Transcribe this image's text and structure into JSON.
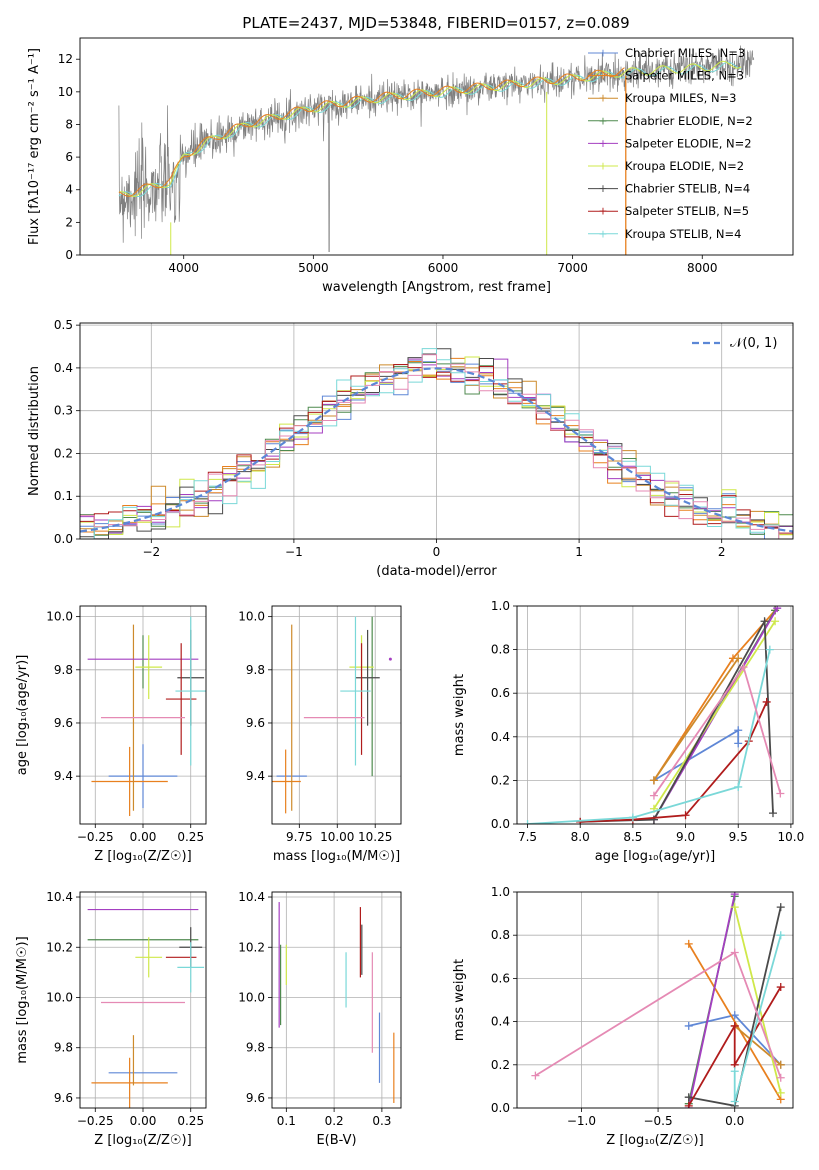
{
  "title": "PLATE=2437, MJD=53848, FIBERID=0157, z=0.089",
  "colors": {
    "chabrier_miles": "#5f87d6",
    "salpeter_miles": "#e8801f",
    "kroupa_miles": "#cd8a2b",
    "chabrier_elodie": "#4f8a4f",
    "salpeter_elodie": "#a43fc1",
    "kroupa_elodie": "#cfe84a",
    "chabrier_stelib": "#4a4a4a",
    "salpeter_stelib": "#b01c1c",
    "kroupa_stelib": "#7ad8d8",
    "data": "#808080",
    "pink": "#e58ab4",
    "normal": "#5b87d6"
  },
  "chart_data": [
    {
      "type": "line",
      "title": "PLATE=2437, MJD=53848, FIBERID=0157, z=0.089",
      "xlabel": "wavelength [Angstrom, rest frame]",
      "ylabel": "Flux [fλ10⁻¹⁷ erg cm⁻² s⁻¹ A⁻¹]",
      "xlim": [
        3200,
        8700
      ],
      "ylim": [
        0,
        13.3
      ],
      "xticks": [
        "4000",
        "5000",
        "6000",
        "7000",
        "8000"
      ],
      "yticks": [
        "0",
        "2",
        "4",
        "6",
        "8",
        "10",
        "12"
      ],
      "series": [
        {
          "name": "Chabrier MILES, N_SSP=3"
        },
        {
          "name": "Salpeter MILES, N_SSP=3"
        },
        {
          "name": "Kroupa MILES, N_SSP=3"
        },
        {
          "name": "Chabrier ELODIE, N_SSP=2"
        },
        {
          "name": "Salpeter ELODIE, N_SSP=2"
        },
        {
          "name": "Kroupa ELODIE, N_SSP=2"
        },
        {
          "name": "Chabrier STELIB, N_SSP=4"
        },
        {
          "name": "Salpeter STELIB, N_SSP=5"
        },
        {
          "name": "Kroupa STELIB, N_SSP=4"
        }
      ],
      "continuum": {
        "x": [
          3500,
          3700,
          3900,
          4000,
          4200,
          4500,
          5000,
          5500,
          6000,
          6500,
          7000,
          7400,
          8000,
          8400
        ],
        "y": [
          3.6,
          4.0,
          4.5,
          6.0,
          7.0,
          8.0,
          9.0,
          9.6,
          10.0,
          10.4,
          10.8,
          11.2,
          11.5,
          11.8
        ]
      },
      "legend_position": "upper right",
      "grid": false
    },
    {
      "type": "line",
      "subtype": "step-histogram",
      "xlabel": "(data-model)/error",
      "ylabel": "Normed distribution",
      "xlim": [
        -2.5,
        2.5
      ],
      "ylim": [
        0,
        0.505
      ],
      "xticks": [
        "−2",
        "−1",
        "0",
        "1",
        "2"
      ],
      "yticks": [
        "0.0",
        "0.1",
        "0.2",
        "0.3",
        "0.4",
        "0.5"
      ],
      "legend": "𝒩(0, 1)",
      "legend_position": "upper right",
      "grid": true,
      "bin_width": 0.1
    },
    {
      "type": "scatter",
      "subtype": "errorbar",
      "xlabel": "Z [log₁₀(Z/Z☉)]",
      "ylabel": "age  [log₁₀(age/yr)]",
      "xlim": [
        -0.33,
        0.33
      ],
      "ylim": [
        9.22,
        10.04
      ],
      "xticks": [
        "−0.25",
        "0.00",
        "0.25"
      ],
      "yticks": [
        "9.4",
        "9.6",
        "9.8",
        "10.0"
      ],
      "grid": true,
      "points": [
        {
          "series": "Chabrier MILES",
          "x": 0.0,
          "xerr": 0.18,
          "y": 9.4,
          "yerr": 0.12
        },
        {
          "series": "Salpeter MILES",
          "x": -0.07,
          "xerr": 0.2,
          "y": 9.38,
          "yerr": 0.13
        },
        {
          "series": "Kroupa MILES",
          "x": -0.05,
          "xerr": 0.0,
          "y": 9.62,
          "yerr": 0.35
        },
        {
          "series": "Chabrier ELODIE",
          "x": 0.0,
          "xerr": 0.0,
          "y": 9.83,
          "yerr": 0.1
        },
        {
          "series": "Salpeter ELODIE",
          "x": 0.0,
          "xerr": 0.29,
          "y": 9.84,
          "yerr": 0.0
        },
        {
          "series": "Kroupa ELODIE",
          "x": 0.03,
          "xerr": 0.07,
          "y": 9.81,
          "yerr": 0.12
        },
        {
          "series": "Chabrier STELIB",
          "x": 0.25,
          "xerr": 0.07,
          "y": 9.77,
          "yerr": 0.18
        },
        {
          "series": "Salpeter STELIB",
          "x": 0.2,
          "xerr": 0.08,
          "y": 9.69,
          "yerr": 0.21
        },
        {
          "series": "Kroupa STELIB",
          "x": 0.25,
          "xerr": 0.08,
          "y": 9.72,
          "yerr": 0.28
        },
        {
          "series": "pink",
          "x": 0.0,
          "xerr": 0.22,
          "y": 9.62,
          "yerr": 0.0
        }
      ]
    },
    {
      "type": "scatter",
      "subtype": "errorbar",
      "xlabel": "mass [log₁₀(M/M☉)]",
      "ylabel": "",
      "xlim": [
        9.57,
        10.42
      ],
      "ylim": [
        9.22,
        10.04
      ],
      "xticks": [
        "9.75",
        "10.00",
        "10.25"
      ],
      "yticks": [
        "9.4",
        "9.6",
        "9.8",
        "10.0"
      ],
      "grid": true,
      "points": [
        {
          "series": "Chabrier MILES",
          "x": 9.7,
          "xerr": 0.1,
          "y": 9.4,
          "yerr": 0.0
        },
        {
          "series": "Salpeter MILES",
          "x": 9.66,
          "xerr": 0.1,
          "y": 9.38,
          "yerr": 0.12
        },
        {
          "series": "Kroupa MILES",
          "x": 9.7,
          "xerr": 0.0,
          "y": 9.62,
          "yerr": 0.35
        },
        {
          "series": "Chabrier ELODIE",
          "x": 10.23,
          "xerr": 0.0,
          "y": 9.7,
          "yerr": 0.3
        },
        {
          "series": "Salpeter ELODIE",
          "x": 10.35,
          "xerr": 0.0,
          "y": 9.84,
          "yerr": 0.0
        },
        {
          "series": "Kroupa ELODIE",
          "x": 10.16,
          "xerr": 0.08,
          "y": 9.81,
          "yerr": 0.12
        },
        {
          "series": "Chabrier STELIB",
          "x": 10.2,
          "xerr": 0.08,
          "y": 9.77,
          "yerr": 0.18
        },
        {
          "series": "Salpeter STELIB",
          "x": 10.16,
          "xerr": 0.0,
          "y": 9.69,
          "yerr": 0.21
        },
        {
          "series": "Kroupa STELIB",
          "x": 10.12,
          "xerr": 0.1,
          "y": 9.72,
          "yerr": 0.28
        },
        {
          "series": "pink",
          "x": 9.98,
          "xerr": 0.2,
          "y": 9.62,
          "yerr": 0.0
        }
      ]
    },
    {
      "type": "line",
      "xlabel": "age  [log₁₀(age/yr)]",
      "ylabel": "mass weight",
      "xlim": [
        7.4,
        10.02
      ],
      "ylim": [
        0,
        1.0
      ],
      "xticks": [
        "7.5",
        "8.0",
        "8.5",
        "9.0",
        "9.5",
        "10.0"
      ],
      "yticks": [
        "0.0",
        "0.2",
        "0.4",
        "0.6",
        "0.8",
        "1.0"
      ],
      "grid": true,
      "series": [
        {
          "key": "chabrier_miles",
          "x": [
            8.7,
            9.5,
            9.5
          ],
          "y": [
            0.2,
            0.43,
            0.37
          ]
        },
        {
          "key": "salpeter_miles",
          "x": [
            8.7,
            9.45,
            9.85
          ],
          "y": [
            0.2,
            0.76,
            0.98
          ]
        },
        {
          "key": "kroupa_miles",
          "x": [
            8.7,
            9.5
          ],
          "y": [
            0.2,
            0.76
          ]
        },
        {
          "key": "chabrier_elodie",
          "x": [
            8.7,
            9.85
          ],
          "y": [
            0.02,
            0.98
          ]
        },
        {
          "key": "salpeter_elodie",
          "x": [
            8.7,
            9.87
          ],
          "y": [
            0.02,
            0.99
          ]
        },
        {
          "key": "kroupa_elodie",
          "x": [
            8.7,
            9.85
          ],
          "y": [
            0.07,
            0.93
          ]
        },
        {
          "key": "chabrier_stelib",
          "x": [
            8.0,
            8.7,
            9.75,
            9.83
          ],
          "y": [
            0.01,
            0.02,
            0.93,
            0.05
          ]
        },
        {
          "key": "salpeter_stelib",
          "x": [
            8.0,
            8.5,
            9.0,
            9.6,
            9.77
          ],
          "y": [
            0.01,
            0.02,
            0.04,
            0.38,
            0.56
          ]
        },
        {
          "key": "kroupa_stelib",
          "x": [
            7.5,
            8.5,
            9.5,
            9.8
          ],
          "y": [
            0.0,
            0.03,
            0.17,
            0.8
          ]
        },
        {
          "key": "pink",
          "x": [
            8.7,
            9.55,
            9.9
          ],
          "y": [
            0.13,
            0.72,
            0.14
          ]
        }
      ]
    },
    {
      "type": "scatter",
      "subtype": "errorbar",
      "xlabel": "Z [log₁₀(Z/Z☉)]",
      "ylabel": "mass [log₁₀(M/M☉)]",
      "xlim": [
        -0.33,
        0.33
      ],
      "ylim": [
        9.56,
        10.42
      ],
      "xticks": [
        "−0.25",
        "0.00",
        "0.25"
      ],
      "yticks": [
        "9.6",
        "9.8",
        "10.0",
        "10.2",
        "10.4"
      ],
      "grid": true,
      "points": [
        {
          "series": "Chabrier MILES",
          "x": 0.0,
          "xerr": 0.18,
          "y": 9.7,
          "yerr": 0.0
        },
        {
          "series": "Salpeter MILES",
          "x": -0.07,
          "xerr": 0.2,
          "y": 9.66,
          "yerr": 0.1
        },
        {
          "series": "Kroupa MILES",
          "x": -0.05,
          "xerr": 0.0,
          "y": 9.75,
          "yerr": 0.1
        },
        {
          "series": "Chabrier ELODIE",
          "x": 0.0,
          "xerr": 0.29,
          "y": 10.23,
          "yerr": 0.0
        },
        {
          "series": "Salpeter ELODIE",
          "x": 0.0,
          "xerr": 0.29,
          "y": 10.35,
          "yerr": 0.0
        },
        {
          "series": "Kroupa ELODIE",
          "x": 0.03,
          "xerr": 0.07,
          "y": 10.16,
          "yerr": 0.08
        },
        {
          "series": "Chabrier STELIB",
          "x": 0.25,
          "xerr": 0.06,
          "y": 10.2,
          "yerr": 0.08
        },
        {
          "series": "Salpeter STELIB",
          "x": 0.2,
          "xerr": 0.08,
          "y": 10.16,
          "yerr": 0.0
        },
        {
          "series": "Kroupa STELIB",
          "x": 0.25,
          "xerr": 0.07,
          "y": 10.12,
          "yerr": 0.1
        },
        {
          "series": "pink",
          "x": 0.0,
          "xerr": 0.22,
          "y": 9.98,
          "yerr": 0.0
        }
      ]
    },
    {
      "type": "scatter",
      "subtype": "errorbar",
      "xlabel": "E(B-V)",
      "ylabel": "",
      "xlim": [
        0.07,
        0.34
      ],
      "ylim": [
        9.56,
        10.42
      ],
      "xticks": [
        "0.1",
        "0.2",
        "0.3"
      ],
      "yticks": [
        "9.6",
        "9.8",
        "10.0",
        "10.2",
        "10.4"
      ],
      "grid": true,
      "points": [
        {
          "series": "Salpeter ELODIE",
          "x": 0.085,
          "xerr": 0.0,
          "y": 10.13,
          "yerr": 0.25
        },
        {
          "series": "Chabrier ELODIE",
          "x": 0.088,
          "xerr": 0.0,
          "y": 10.05,
          "yerr": 0.16
        },
        {
          "series": "Kroupa ELODIE",
          "x": 0.1,
          "xerr": 0.0,
          "y": 10.13,
          "yerr": 0.08
        },
        {
          "series": "Kroupa STELIB",
          "x": 0.225,
          "xerr": 0.0,
          "y": 10.07,
          "yerr": 0.11
        },
        {
          "series": "Salpeter STELIB",
          "x": 0.255,
          "xerr": 0.0,
          "y": 10.22,
          "yerr": 0.14
        },
        {
          "series": "Chabrier STELIB",
          "x": 0.258,
          "xerr": 0.0,
          "y": 10.19,
          "yerr": 0.1
        },
        {
          "series": "pink",
          "x": 0.28,
          "xerr": 0.0,
          "y": 9.98,
          "yerr": 0.2
        },
        {
          "series": "Chabrier MILES",
          "x": 0.295,
          "xerr": 0.0,
          "y": 9.8,
          "yerr": 0.14
        },
        {
          "series": "Salpeter MILES",
          "x": 0.325,
          "xerr": 0.0,
          "y": 9.72,
          "yerr": 0.14
        }
      ]
    },
    {
      "type": "line",
      "xlabel": "Z [log₁₀(Z/Z☉)]",
      "ylabel": "mass weight",
      "xlim": [
        -1.42,
        0.38
      ],
      "ylim": [
        0,
        1.0
      ],
      "xticks": [
        "−1.0",
        "−0.5",
        "0.0"
      ],
      "yticks": [
        "0.0",
        "0.2",
        "0.4",
        "0.6",
        "0.8",
        "1.0"
      ],
      "grid": true,
      "series": [
        {
          "key": "chabrier_miles",
          "x": [
            -0.3,
            0.0,
            0.3
          ],
          "y": [
            0.38,
            0.43,
            0.2
          ]
        },
        {
          "key": "salpeter_miles",
          "x": [
            -0.3,
            0.3
          ],
          "y": [
            0.76,
            0.04
          ]
        },
        {
          "key": "kroupa_miles",
          "x": [
            0.0,
            0.3
          ],
          "y": [
            0.38,
            0.2
          ]
        },
        {
          "key": "chabrier_elodie",
          "x": [
            -0.3,
            0.0
          ],
          "y": [
            0.02,
            0.98
          ]
        },
        {
          "key": "salpeter_elodie",
          "x": [
            -0.3,
            0.0
          ],
          "y": [
            0.0,
            0.99
          ]
        },
        {
          "key": "kroupa_elodie",
          "x": [
            0.0,
            0.3
          ],
          "y": [
            0.93,
            0.07
          ]
        },
        {
          "key": "chabrier_stelib",
          "x": [
            -0.3,
            0.0,
            0.3
          ],
          "y": [
            0.05,
            0.01,
            0.93
          ]
        },
        {
          "key": "salpeter_stelib",
          "x": [
            -0.3,
            0.0,
            0.0,
            0.3
          ],
          "y": [
            0.01,
            0.38,
            0.2,
            0.56
          ]
        },
        {
          "key": "kroupa_stelib",
          "x": [
            0.0,
            0.0,
            0.3
          ],
          "y": [
            0.17,
            0.03,
            0.8
          ]
        },
        {
          "key": "pink",
          "x": [
            -1.3,
            0.0,
            0.3
          ],
          "y": [
            0.15,
            0.72,
            0.14
          ]
        }
      ]
    }
  ]
}
